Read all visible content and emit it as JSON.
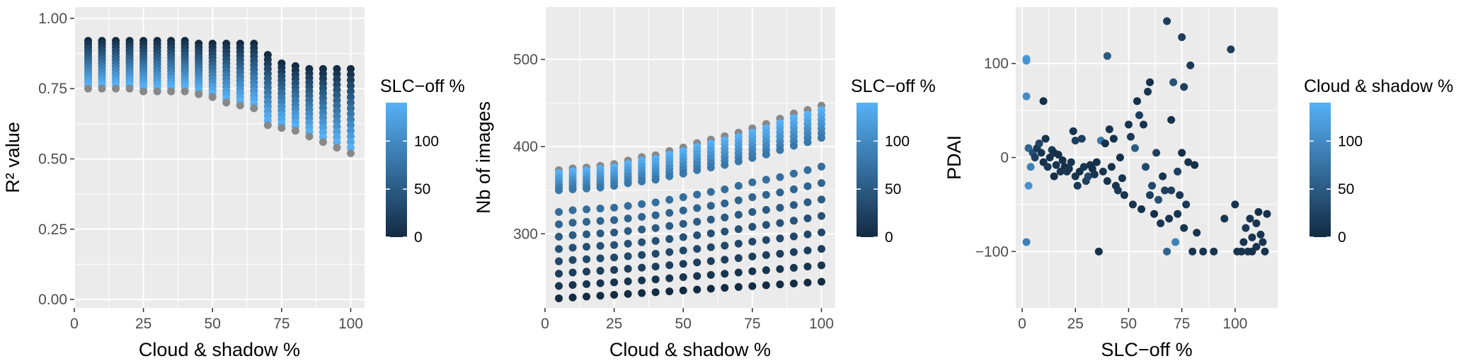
{
  "colors": {
    "panel_bg": "#ebebeb",
    "grid_major": "#ffffff",
    "gradient_low": "#132b43",
    "gradient_high": "#56b1f7",
    "gray_points": "#888888"
  },
  "chart_data": [
    {
      "type": "scatter",
      "xlabel": "Cloud & shadow %",
      "ylabel": "R² value",
      "xlim": [
        0,
        105
      ],
      "ylim": [
        -0.03,
        1.04
      ],
      "xticks": [
        0,
        25,
        50,
        75,
        100
      ],
      "yticks": [
        0.0,
        0.25,
        0.5,
        0.75,
        1.0
      ],
      "ytick_labels": [
        "0.00",
        "0.25",
        "0.50",
        "0.75",
        "1.00"
      ],
      "grid": true,
      "legend": {
        "title": "SLC−off %",
        "position": "right",
        "range": [
          0,
          140
        ],
        "ticks": [
          0,
          50,
          100
        ]
      },
      "x": [
        5,
        10,
        15,
        20,
        25,
        30,
        35,
        40,
        45,
        50,
        55,
        60,
        65,
        70,
        75,
        80,
        85,
        90,
        95,
        100
      ],
      "series_slc_off_pct": [
        0,
        10,
        20,
        30,
        40,
        50,
        60,
        70,
        80,
        90,
        100,
        110,
        120,
        130,
        140,
        150
      ],
      "y_top": [
        0.92,
        0.92,
        0.92,
        0.92,
        0.92,
        0.92,
        0.92,
        0.92,
        0.91,
        0.91,
        0.91,
        0.91,
        0.91,
        0.87,
        0.84,
        0.83,
        0.82,
        0.82,
        0.82,
        0.82
      ],
      "y_bottom": [
        0.75,
        0.75,
        0.75,
        0.75,
        0.74,
        0.74,
        0.74,
        0.74,
        0.73,
        0.72,
        0.7,
        0.69,
        0.68,
        0.62,
        0.61,
        0.6,
        0.58,
        0.56,
        0.54,
        0.52
      ]
    },
    {
      "type": "scatter",
      "xlabel": "Cloud & shadow %",
      "ylabel": "Nb of images",
      "xlim": [
        0,
        105
      ],
      "ylim": [
        215,
        560
      ],
      "xticks": [
        0,
        25,
        50,
        75,
        100
      ],
      "yticks": [
        300,
        400,
        500
      ],
      "ytick_labels": [
        "300",
        "400",
        "500"
      ],
      "grid": true,
      "legend": {
        "title": "SLC−off %",
        "position": "right",
        "range": [
          0,
          140
        ],
        "ticks": [
          0,
          50,
          100
        ]
      },
      "x": [
        5,
        10,
        15,
        20,
        25,
        30,
        35,
        40,
        45,
        50,
        55,
        60,
        65,
        70,
        75,
        80,
        85,
        90,
        95,
        100
      ],
      "series_slc_off_pct": [
        0,
        10,
        20,
        30,
        40,
        50,
        60,
        70,
        80,
        90,
        100,
        110,
        120,
        130,
        140,
        150
      ],
      "upper_top": [
        373,
        375,
        376,
        378,
        380,
        384,
        388,
        390,
        395,
        399,
        404,
        408,
        412,
        416,
        421,
        426,
        432,
        438,
        442,
        447
      ],
      "upper_bottom": [
        350,
        351,
        352,
        353,
        355,
        358,
        360,
        362,
        366,
        369,
        373,
        376,
        379,
        383,
        387,
        391,
        396,
        401,
        405,
        410
      ],
      "lower_top": [
        325,
        327,
        328,
        329,
        330,
        332,
        334,
        336,
        339,
        342,
        345,
        348,
        351,
        355,
        359,
        362,
        365,
        369,
        373,
        377
      ],
      "lower_bottom": [
        226,
        227,
        228,
        229,
        230,
        231,
        232,
        233,
        234,
        235,
        236,
        237,
        238,
        239,
        240,
        241,
        242,
        243,
        244,
        245
      ]
    },
    {
      "type": "scatter",
      "xlabel": "SLC−off %",
      "ylabel": "PDAI",
      "xlim": [
        -3,
        120
      ],
      "ylim": [
        -160,
        160
      ],
      "xticks": [
        0,
        25,
        50,
        75,
        100
      ],
      "yticks": [
        -100,
        0,
        100
      ],
      "ytick_labels": [
        "−100",
        "0",
        "100"
      ],
      "grid": true,
      "legend": {
        "title": "Cloud & shadow %",
        "position": "right",
        "range": [
          0,
          140
        ],
        "ticks": [
          0,
          50,
          100
        ]
      },
      "points": [
        [
          2,
          105,
          120
        ],
        [
          2,
          103,
          110
        ],
        [
          2,
          65,
          100
        ],
        [
          3,
          10,
          60
        ],
        [
          3,
          -30,
          110
        ],
        [
          2,
          -90,
          90
        ],
        [
          4,
          -10,
          90
        ],
        [
          5,
          5,
          40
        ],
        [
          6,
          0,
          20
        ],
        [
          7,
          10,
          15
        ],
        [
          8,
          15,
          25
        ],
        [
          9,
          5,
          10
        ],
        [
          10,
          -5,
          5
        ],
        [
          10,
          60,
          5
        ],
        [
          11,
          20,
          10
        ],
        [
          12,
          -10,
          15
        ],
        [
          13,
          0,
          5
        ],
        [
          14,
          8,
          20
        ],
        [
          15,
          -20,
          5
        ],
        [
          15,
          5,
          5
        ],
        [
          16,
          -8,
          10
        ],
        [
          17,
          3,
          5
        ],
        [
          18,
          -15,
          10
        ],
        [
          19,
          -3,
          5
        ],
        [
          20,
          -10,
          5
        ],
        [
          21,
          -15,
          15
        ],
        [
          22,
          -12,
          10
        ],
        [
          23,
          -5,
          10
        ],
        [
          24,
          28,
          10
        ],
        [
          25,
          18,
          20
        ],
        [
          25,
          -20,
          10
        ],
        [
          26,
          -30,
          15
        ],
        [
          27,
          -15,
          5
        ],
        [
          28,
          20,
          20
        ],
        [
          29,
          -10,
          10
        ],
        [
          30,
          -25,
          25
        ],
        [
          31,
          -20,
          30
        ],
        [
          32,
          -8,
          5
        ],
        [
          33,
          -12,
          5
        ],
        [
          34,
          -18,
          10
        ],
        [
          35,
          -5,
          5
        ],
        [
          36,
          -100,
          5
        ],
        [
          37,
          18,
          80
        ],
        [
          38,
          -15,
          10
        ],
        [
          39,
          15,
          5
        ],
        [
          40,
          108,
          50
        ],
        [
          40,
          -25,
          10
        ],
        [
          41,
          30,
          10
        ],
        [
          42,
          -10,
          5
        ],
        [
          43,
          20,
          5
        ],
        [
          44,
          -30,
          10
        ],
        [
          45,
          -35,
          15
        ],
        [
          46,
          0,
          5
        ],
        [
          47,
          -22,
          10
        ],
        [
          48,
          -40,
          10
        ],
        [
          50,
          35,
          10
        ],
        [
          51,
          22,
          15
        ],
        [
          52,
          -50,
          10
        ],
        [
          53,
          10,
          50
        ],
        [
          54,
          60,
          5
        ],
        [
          55,
          45,
          20
        ],
        [
          56,
          -55,
          5
        ],
        [
          57,
          35,
          10
        ],
        [
          58,
          -10,
          30
        ],
        [
          59,
          70,
          10
        ],
        [
          60,
          -40,
          20
        ],
        [
          60,
          80,
          5
        ],
        [
          61,
          -30,
          30
        ],
        [
          62,
          -60,
          5
        ],
        [
          63,
          5,
          20
        ],
        [
          64,
          -45,
          40
        ],
        [
          65,
          -70,
          10
        ],
        [
          66,
          -20,
          10
        ],
        [
          67,
          -35,
          20
        ],
        [
          68,
          145,
          20
        ],
        [
          68,
          -100,
          60
        ],
        [
          69,
          -65,
          10
        ],
        [
          70,
          40,
          5
        ],
        [
          70,
          -35,
          20
        ],
        [
          71,
          80,
          40
        ],
        [
          72,
          -90,
          90
        ],
        [
          73,
          -60,
          10
        ],
        [
          73,
          -15,
          20
        ],
        [
          74,
          -40,
          10
        ],
        [
          75,
          5,
          5
        ],
        [
          75,
          128,
          20
        ],
        [
          76,
          -75,
          10
        ],
        [
          76,
          75,
          20
        ],
        [
          77,
          -50,
          15
        ],
        [
          78,
          -5,
          10
        ],
        [
          79,
          98,
          15
        ],
        [
          80,
          -100,
          10
        ],
        [
          81,
          -8,
          5
        ],
        [
          82,
          -80,
          10
        ],
        [
          85,
          -100,
          10
        ],
        [
          90,
          -100,
          10
        ],
        [
          95,
          -65,
          10
        ],
        [
          98,
          115,
          20
        ],
        [
          100,
          -50,
          10
        ],
        [
          101,
          -100,
          10
        ],
        [
          103,
          -100,
          10
        ],
        [
          104,
          -90,
          10
        ],
        [
          105,
          -75,
          15
        ],
        [
          106,
          -100,
          10
        ],
        [
          107,
          -65,
          10
        ],
        [
          108,
          -85,
          10
        ],
        [
          108,
          -100,
          5
        ],
        [
          110,
          -95,
          10
        ],
        [
          110,
          -70,
          10
        ],
        [
          111,
          -58,
          5
        ],
        [
          112,
          -82,
          10
        ],
        [
          113,
          -90,
          10
        ],
        [
          114,
          -100,
          10
        ],
        [
          115,
          -60,
          5
        ]
      ]
    }
  ]
}
